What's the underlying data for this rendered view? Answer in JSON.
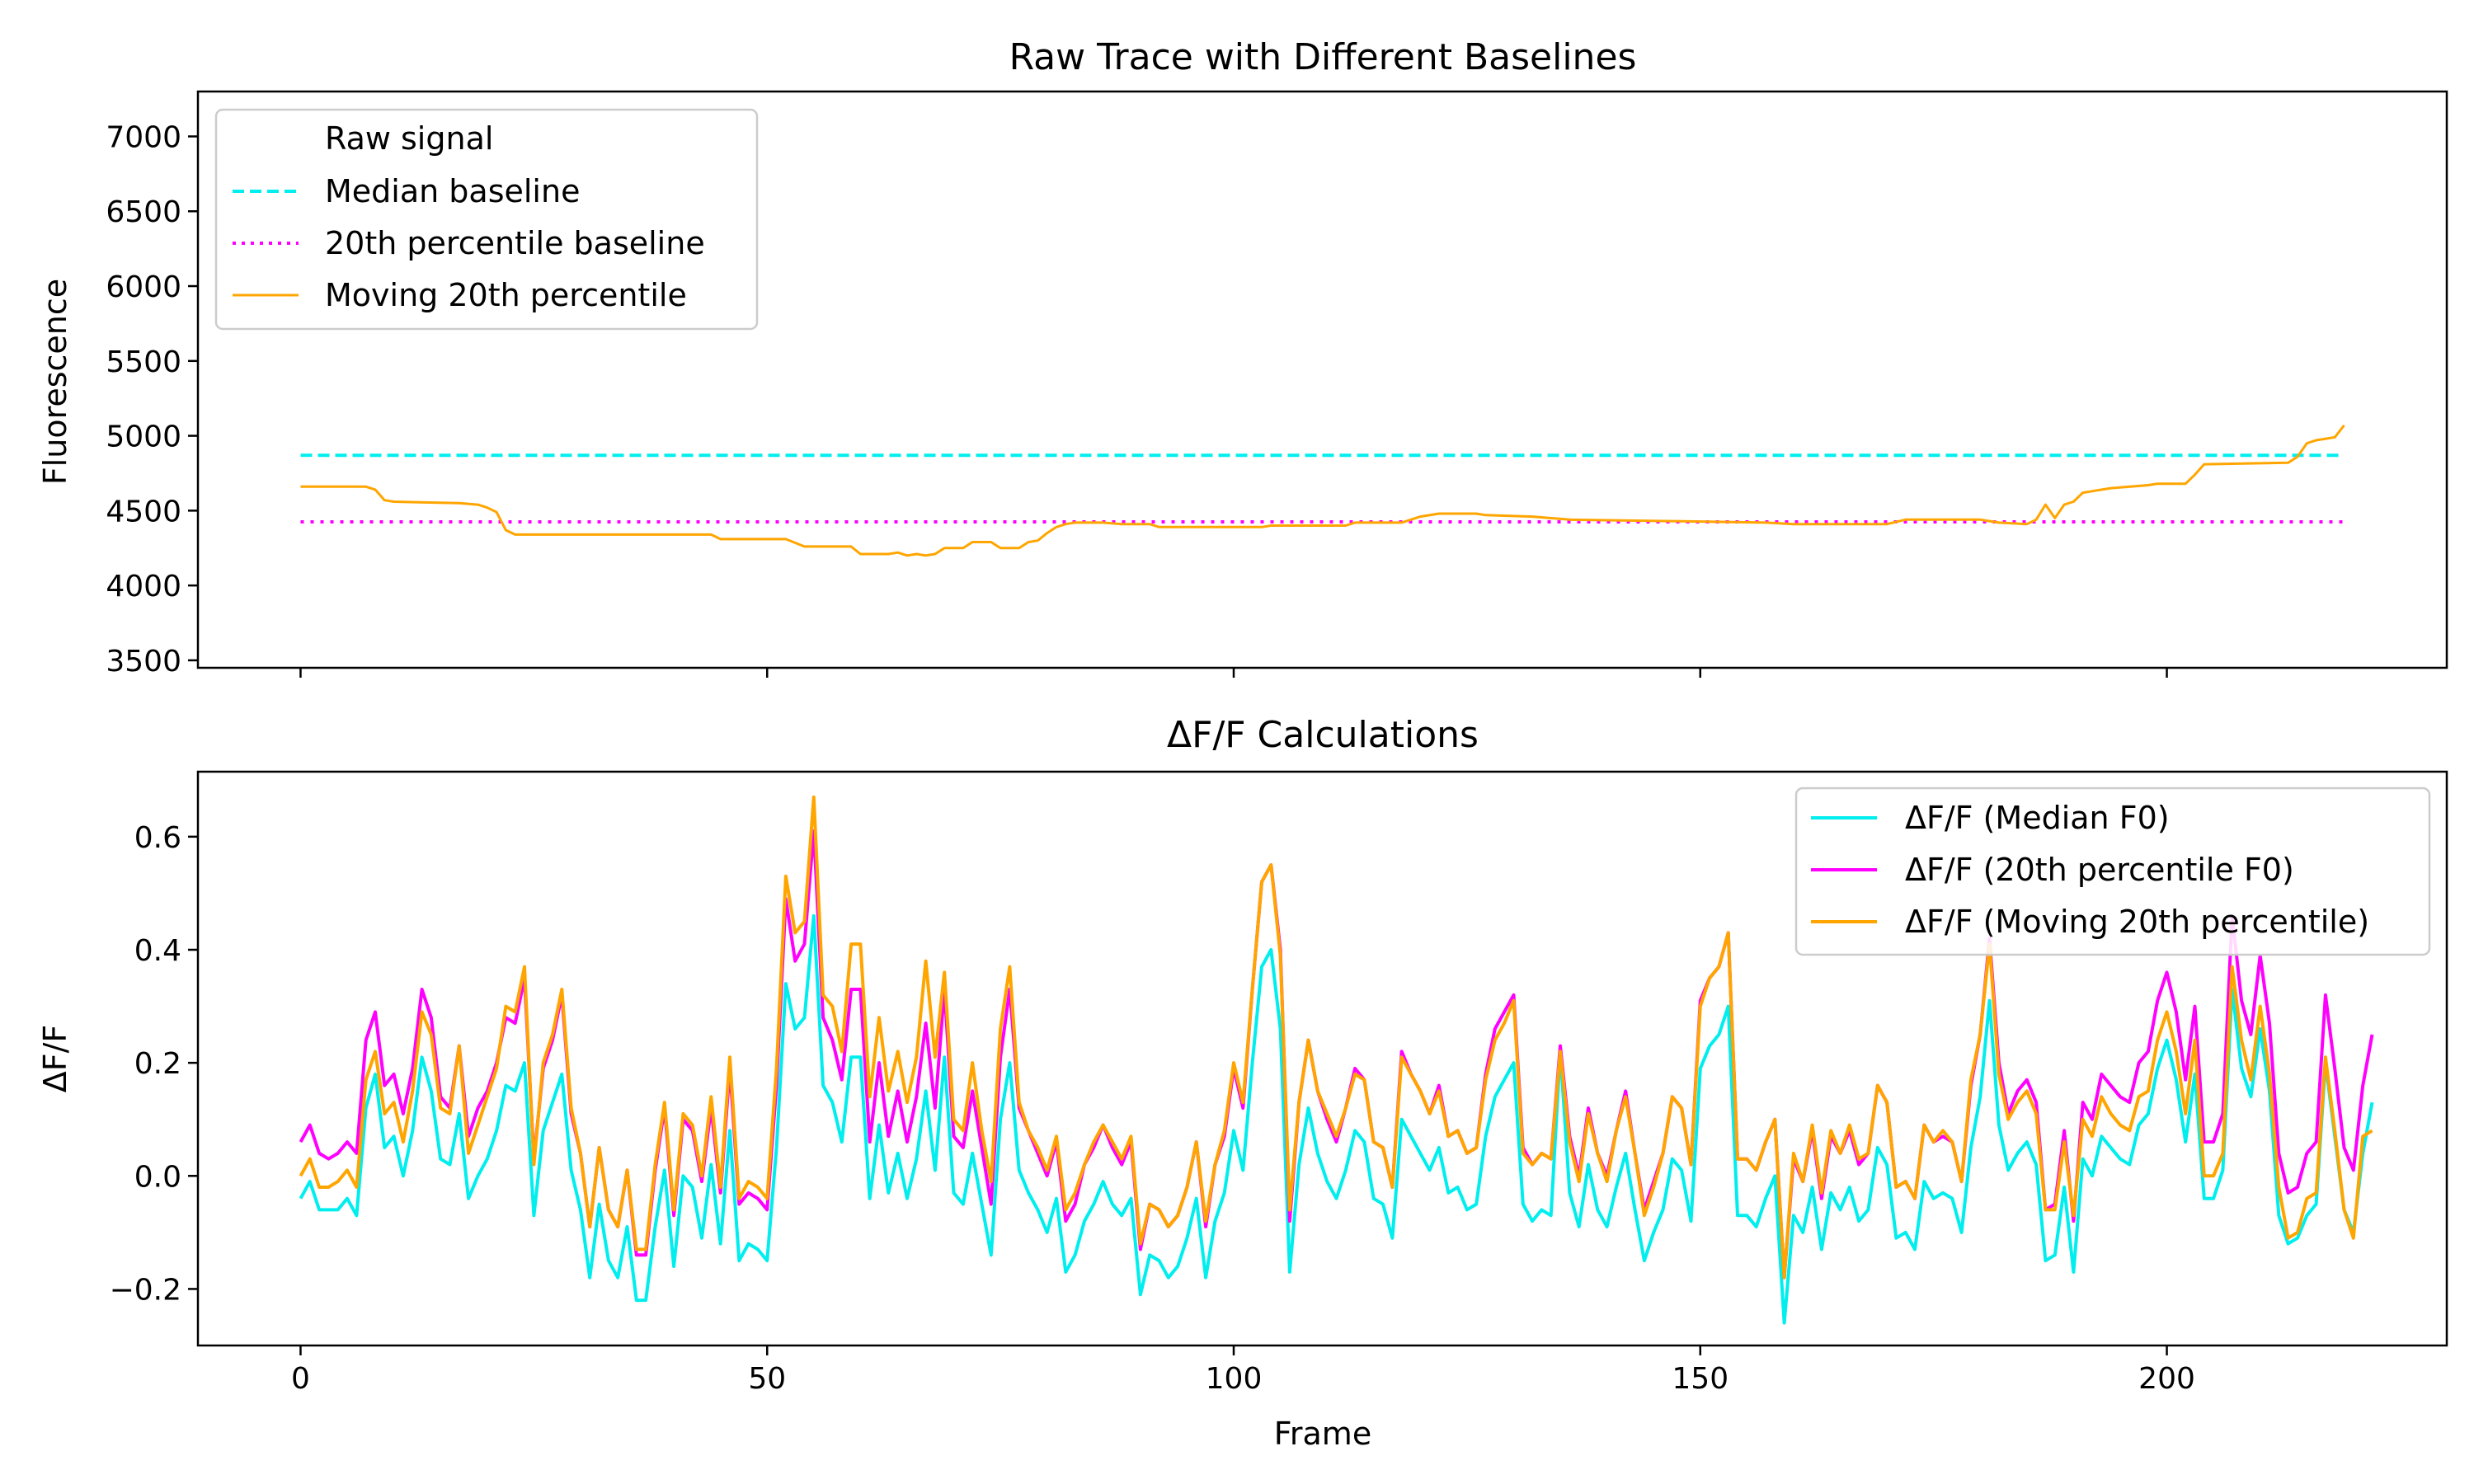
{
  "colors": {
    "median": "#00eeee",
    "pct20": "#ff00ff",
    "moving": "#ffa500"
  },
  "chart_data": [
    {
      "type": "line",
      "title": "Raw Trace with Different Baselines",
      "xlabel": "",
      "ylabel": "Fluorescence",
      "xlim": [
        -11,
        230
      ],
      "ylim": [
        3450,
        7300
      ],
      "xticks": [
        0,
        50,
        100,
        150,
        200
      ],
      "yticks": [
        3500,
        4000,
        4500,
        5000,
        5500,
        6000,
        6500,
        7000
      ],
      "ytick_labels": [
        "3500",
        "4000",
        "4500",
        "5000",
        "5500",
        "6000",
        "6500",
        "7000"
      ],
      "legend_position": "upper-left",
      "series": [
        {
          "name": "Raw signal",
          "style": "none",
          "values": []
        },
        {
          "name": "Median baseline",
          "style": "dashed",
          "color": "#00eeee",
          "values": [
            [
              0,
              4870
            ],
            [
              219,
              4870
            ]
          ]
        },
        {
          "name": "20th percentile baseline",
          "style": "dotted",
          "color": "#ff00ff",
          "values": [
            [
              0,
              4425
            ],
            [
              219,
              4425
            ]
          ]
        },
        {
          "name": "Moving 20th percentile",
          "style": "solid",
          "color": "#ffa500",
          "values": [
            [
              0,
              4660
            ],
            [
              7,
              4660
            ],
            [
              8,
              4640
            ],
            [
              9,
              4570
            ],
            [
              10,
              4560
            ],
            [
              17,
              4550
            ],
            [
              19,
              4540
            ],
            [
              20,
              4520
            ],
            [
              21,
              4490
            ],
            [
              22,
              4370
            ],
            [
              23,
              4340
            ],
            [
              44,
              4340
            ],
            [
              45,
              4310
            ],
            [
              52,
              4310
            ],
            [
              54,
              4260
            ],
            [
              59,
              4260
            ],
            [
              60,
              4210
            ],
            [
              63,
              4210
            ],
            [
              64,
              4220
            ],
            [
              65,
              4200
            ],
            [
              66,
              4210
            ],
            [
              67,
              4200
            ],
            [
              68,
              4210
            ],
            [
              69,
              4250
            ],
            [
              71,
              4250
            ],
            [
              72,
              4290
            ],
            [
              74,
              4290
            ],
            [
              75,
              4250
            ],
            [
              77,
              4250
            ],
            [
              78,
              4290
            ],
            [
              79,
              4300
            ],
            [
              80,
              4350
            ],
            [
              81,
              4390
            ],
            [
              82,
              4410
            ],
            [
              83,
              4420
            ],
            [
              86,
              4420
            ],
            [
              88,
              4410
            ],
            [
              91,
              4410
            ],
            [
              92,
              4390
            ],
            [
              103,
              4390
            ],
            [
              104,
              4400
            ],
            [
              112,
              4400
            ],
            [
              113,
              4420
            ],
            [
              118,
              4420
            ],
            [
              120,
              4460
            ],
            [
              122,
              4480
            ],
            [
              126,
              4480
            ],
            [
              127,
              4470
            ],
            [
              132,
              4460
            ],
            [
              136,
              4440
            ],
            [
              147,
              4430
            ],
            [
              157,
              4420
            ],
            [
              160,
              4410
            ],
            [
              170,
              4410
            ],
            [
              172,
              4440
            ],
            [
              180,
              4440
            ],
            [
              182,
              4420
            ],
            [
              185,
              4410
            ],
            [
              186,
              4440
            ],
            [
              187,
              4540
            ],
            [
              188,
              4450
            ],
            [
              189,
              4540
            ],
            [
              190,
              4560
            ],
            [
              191,
              4620
            ],
            [
              194,
              4650
            ],
            [
              198,
              4670
            ],
            [
              199,
              4680
            ],
            [
              202,
              4680
            ],
            [
              203,
              4740
            ],
            [
              204,
              4810
            ],
            [
              213,
              4820
            ],
            [
              214,
              4860
            ],
            [
              215,
              4950
            ],
            [
              216,
              4970
            ],
            [
              218,
              4990
            ],
            [
              219,
              5070
            ]
          ]
        }
      ]
    },
    {
      "type": "line",
      "title": "ΔF/F Calculations",
      "xlabel": "Frame",
      "ylabel": "ΔF/F",
      "xlim": [
        -11,
        230
      ],
      "ylim": [
        -0.3,
        0.715
      ],
      "xticks": [
        0,
        50,
        100,
        150,
        200
      ],
      "yticks": [
        -0.2,
        0.0,
        0.2,
        0.4,
        0.6
      ],
      "ytick_labels": [
        "−0.2",
        "0.0",
        "0.2",
        "0.4",
        "0.6"
      ],
      "legend_position": "upper-right",
      "series": [
        {
          "name": "ΔF/F (Median F0)",
          "color": "#00eeee",
          "values": [
            -0.04,
            -0.01,
            -0.06,
            -0.06,
            -0.06,
            -0.04,
            -0.07,
            0.12,
            0.18,
            0.05,
            0.07,
            0.0,
            0.08,
            0.21,
            0.15,
            0.03,
            0.02,
            0.11,
            -0.04,
            0.0,
            0.03,
            0.08,
            0.16,
            0.15,
            0.2,
            -0.07,
            0.08,
            0.13,
            0.18,
            0.01,
            -0.06,
            -0.18,
            -0.05,
            -0.15,
            -0.18,
            -0.09,
            -0.22,
            -0.22,
            -0.09,
            0.01,
            -0.16,
            0.0,
            -0.02,
            -0.11,
            0.02,
            -0.12,
            0.08,
            -0.15,
            -0.12,
            -0.13,
            -0.15,
            0.05,
            0.34,
            0.26,
            0.28,
            0.46,
            0.16,
            0.13,
            0.06,
            0.21,
            0.21,
            -0.04,
            0.09,
            -0.03,
            0.04,
            -0.04,
            0.03,
            0.15,
            0.01,
            0.21,
            -0.03,
            -0.05,
            0.04,
            -0.05,
            -0.14,
            0.1,
            0.2,
            0.01,
            -0.03,
            -0.06,
            -0.1,
            -0.04,
            -0.17,
            -0.14,
            -0.08,
            -0.05,
            -0.01,
            -0.05,
            -0.07,
            -0.04,
            -0.21,
            -0.14,
            -0.15,
            -0.18,
            -0.16,
            -0.11,
            -0.04,
            -0.18,
            -0.08,
            -0.03,
            0.08,
            0.01,
            0.2,
            0.37,
            0.4,
            0.26,
            -0.17,
            0.02,
            0.12,
            0.04,
            -0.01,
            -0.04,
            0.01,
            0.08,
            0.06,
            -0.04,
            -0.05,
            -0.11,
            0.1,
            0.07,
            0.04,
            0.01,
            0.05,
            -0.03,
            -0.02,
            -0.06,
            -0.05,
            0.07,
            0.14,
            0.17,
            0.2,
            -0.05,
            -0.08,
            -0.06,
            -0.07,
            0.22,
            -0.03,
            -0.09,
            0.02,
            -0.06,
            -0.09,
            -0.02,
            0.04,
            -0.06,
            -0.15,
            -0.1,
            -0.06,
            0.03,
            0.01,
            -0.08,
            0.19,
            0.23,
            0.25,
            0.3,
            -0.07,
            -0.07,
            -0.09,
            -0.04,
            -0.0,
            -0.26,
            -0.07,
            -0.1,
            -0.02,
            -0.13,
            -0.03,
            -0.06,
            -0.02,
            -0.08,
            -0.06,
            0.05,
            0.02,
            -0.11,
            -0.1,
            -0.13,
            -0.01,
            -0.04,
            -0.03,
            -0.04,
            -0.1,
            0.05,
            0.14,
            0.31,
            0.09,
            0.01,
            0.04,
            0.06,
            0.02,
            -0.15,
            -0.14,
            -0.02,
            -0.17,
            0.03,
            0.0,
            0.07,
            0.05,
            0.03,
            0.02,
            0.09,
            0.11,
            0.19,
            0.24,
            0.17,
            0.06,
            0.18,
            -0.04,
            -0.04,
            0.01,
            0.33,
            0.19,
            0.14,
            0.26,
            0.15,
            -0.07,
            -0.12,
            -0.11,
            -0.07,
            -0.05,
            0.2,
            0.07,
            -0.06,
            -0.1,
            0.04,
            0.13
          ]
        },
        {
          "name": "ΔF/F (20th percentile F0)",
          "color": "#ff00ff",
          "values": [
            0.06,
            0.09,
            0.04,
            0.03,
            0.04,
            0.06,
            0.04,
            0.24,
            0.29,
            0.16,
            0.18,
            0.11,
            0.19,
            0.33,
            0.28,
            0.14,
            0.12,
            0.23,
            0.07,
            0.12,
            0.15,
            0.2,
            0.28,
            0.27,
            0.35,
            0.03,
            0.19,
            0.24,
            0.32,
            0.11,
            0.04,
            -0.09,
            0.05,
            -0.06,
            -0.09,
            0.01,
            -0.14,
            -0.14,
            0.01,
            0.12,
            -0.07,
            0.1,
            0.08,
            -0.01,
            0.12,
            -0.03,
            0.19,
            -0.05,
            -0.03,
            -0.04,
            -0.06,
            0.16,
            0.49,
            0.38,
            0.41,
            0.61,
            0.28,
            0.24,
            0.17,
            0.33,
            0.33,
            0.06,
            0.2,
            0.07,
            0.15,
            0.06,
            0.14,
            0.27,
            0.12,
            0.33,
            0.07,
            0.05,
            0.15,
            0.05,
            -0.05,
            0.21,
            0.33,
            0.12,
            0.08,
            0.04,
            0.0,
            0.06,
            -0.08,
            -0.05,
            0.02,
            0.05,
            0.09,
            0.05,
            0.02,
            0.06,
            -0.13,
            -0.05,
            -0.06,
            -0.09,
            -0.07,
            -0.02,
            0.06,
            -0.09,
            0.02,
            0.07,
            0.19,
            0.12,
            0.33,
            0.52,
            0.55,
            0.4,
            -0.08,
            0.13,
            0.24,
            0.15,
            0.1,
            0.06,
            0.12,
            0.19,
            0.17,
            0.06,
            0.05,
            -0.02,
            0.22,
            0.18,
            0.15,
            0.11,
            0.16,
            0.07,
            0.08,
            0.04,
            0.05,
            0.18,
            0.26,
            0.29,
            0.32,
            0.05,
            0.02,
            0.04,
            0.03,
            0.23,
            0.07,
            -0.0,
            0.12,
            0.04,
            -0.0,
            0.08,
            0.15,
            0.04,
            -0.06,
            -0.01,
            0.04,
            0.14,
            0.12,
            0.02,
            0.31,
            0.35,
            0.37,
            0.43,
            0.03,
            0.03,
            0.01,
            0.06,
            0.1,
            -0.18,
            0.03,
            -0.01,
            0.08,
            -0.04,
            0.07,
            0.04,
            0.08,
            0.02,
            0.04,
            0.16,
            0.13,
            -0.02,
            -0.01,
            -0.04,
            0.09,
            0.06,
            0.07,
            0.06,
            -0.01,
            0.16,
            0.25,
            0.42,
            0.2,
            0.11,
            0.15,
            0.17,
            0.13,
            -0.06,
            -0.05,
            0.08,
            -0.08,
            0.13,
            0.1,
            0.18,
            0.16,
            0.14,
            0.13,
            0.2,
            0.22,
            0.31,
            0.36,
            0.29,
            0.17,
            0.3,
            0.06,
            0.06,
            0.11,
            0.46,
            0.31,
            0.25,
            0.39,
            0.27,
            0.04,
            -0.03,
            -0.02,
            0.04,
            0.06,
            0.32,
            0.19,
            0.05,
            0.01,
            0.16,
            0.25
          ]
        },
        {
          "name": "ΔF/F (Moving 20th percentile)",
          "color": "#ffa500",
          "values": [
            0.0,
            0.03,
            -0.02,
            -0.02,
            -0.01,
            0.01,
            -0.02,
            0.17,
            0.22,
            0.11,
            0.13,
            0.06,
            0.15,
            0.29,
            0.25,
            0.12,
            0.11,
            0.23,
            0.04,
            0.09,
            0.14,
            0.19,
            0.3,
            0.29,
            0.37,
            0.02,
            0.2,
            0.25,
            0.33,
            0.12,
            0.04,
            -0.09,
            0.05,
            -0.06,
            -0.09,
            0.01,
            -0.13,
            -0.13,
            0.02,
            0.13,
            -0.06,
            0.11,
            0.09,
            0.0,
            0.14,
            -0.02,
            0.21,
            -0.04,
            -0.01,
            -0.02,
            -0.04,
            0.19,
            0.53,
            0.43,
            0.45,
            0.67,
            0.32,
            0.3,
            0.22,
            0.41,
            0.41,
            0.14,
            0.28,
            0.15,
            0.22,
            0.13,
            0.21,
            0.38,
            0.21,
            0.36,
            0.1,
            0.08,
            0.2,
            0.08,
            -0.01,
            0.26,
            0.37,
            0.13,
            0.08,
            0.05,
            0.01,
            0.07,
            -0.06,
            -0.03,
            0.02,
            0.06,
            0.09,
            0.06,
            0.03,
            0.07,
            -0.12,
            -0.05,
            -0.06,
            -0.09,
            -0.07,
            -0.02,
            0.06,
            -0.08,
            0.02,
            0.08,
            0.2,
            0.13,
            0.33,
            0.52,
            0.55,
            0.39,
            -0.06,
            0.13,
            0.24,
            0.15,
            0.11,
            0.07,
            0.12,
            0.18,
            0.17,
            0.06,
            0.05,
            -0.02,
            0.21,
            0.18,
            0.15,
            0.11,
            0.15,
            0.07,
            0.08,
            0.04,
            0.05,
            0.17,
            0.24,
            0.27,
            0.31,
            0.04,
            0.02,
            0.04,
            0.03,
            0.22,
            0.06,
            -0.01,
            0.11,
            0.04,
            -0.01,
            0.08,
            0.14,
            0.04,
            -0.07,
            -0.02,
            0.04,
            0.14,
            0.12,
            0.02,
            0.3,
            0.35,
            0.37,
            0.43,
            0.03,
            0.03,
            0.01,
            0.06,
            0.1,
            -0.18,
            0.04,
            -0.01,
            0.09,
            -0.03,
            0.08,
            0.04,
            0.09,
            0.03,
            0.04,
            0.16,
            0.13,
            -0.02,
            -0.01,
            -0.04,
            0.09,
            0.06,
            0.08,
            0.06,
            -0.01,
            0.17,
            0.25,
            0.41,
            0.18,
            0.1,
            0.13,
            0.15,
            0.11,
            -0.06,
            -0.06,
            0.06,
            -0.07,
            0.1,
            0.07,
            0.14,
            0.11,
            0.09,
            0.08,
            0.14,
            0.15,
            0.24,
            0.29,
            0.22,
            0.11,
            0.24,
            0.0,
            0.0,
            0.04,
            0.37,
            0.24,
            0.17,
            0.3,
            0.18,
            -0.02,
            -0.11,
            -0.1,
            -0.04,
            -0.03,
            0.21,
            0.08,
            -0.06,
            -0.11,
            0.07,
            0.08
          ]
        }
      ]
    }
  ]
}
